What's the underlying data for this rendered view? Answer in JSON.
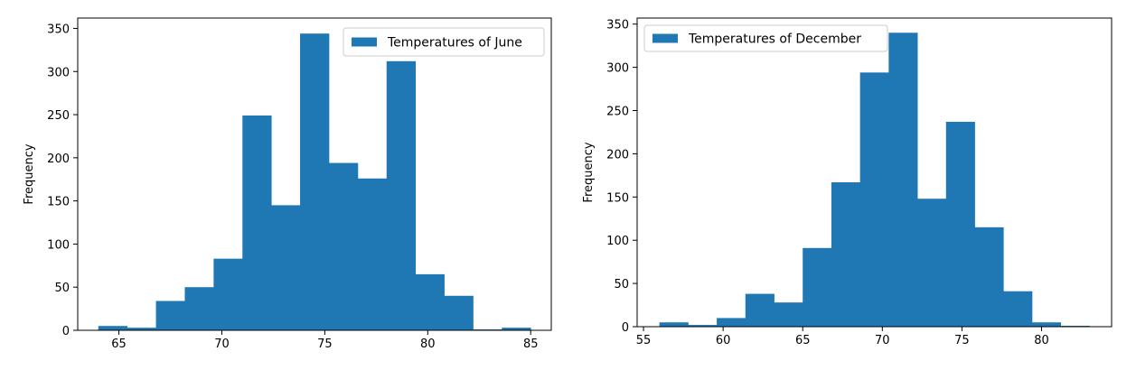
{
  "chart_data": [
    {
      "type": "bar",
      "title": "",
      "xlabel": "",
      "ylabel": "Frequency",
      "bin_edges": [
        64.0,
        65.4,
        66.8,
        68.2,
        69.6,
        71.0,
        72.4,
        73.8,
        75.2,
        76.6,
        78.0,
        79.4,
        80.8,
        82.2,
        83.6,
        85.0
      ],
      "values": [
        5,
        3,
        34,
        50,
        83,
        249,
        145,
        344,
        194,
        176,
        312,
        65,
        40,
        1,
        3
      ],
      "series": [
        {
          "name": "Temperatures of June",
          "color": "#1f77b4"
        }
      ],
      "xlim": [
        63.0,
        86.0
      ],
      "ylim": [
        0,
        362
      ],
      "xticks": [
        65,
        70,
        75,
        80,
        85
      ],
      "yticks": [
        0,
        50,
        100,
        150,
        200,
        250,
        300,
        350
      ],
      "grid": false,
      "legend": "top-right"
    },
    {
      "type": "bar",
      "title": "",
      "xlabel": "",
      "ylabel": "Frequency",
      "bin_edges": [
        56.0,
        57.8,
        59.6,
        61.4,
        63.2,
        65.0,
        66.8,
        68.6,
        70.4,
        72.2,
        74.0,
        75.8,
        77.6,
        79.4,
        81.2,
        83.0
      ],
      "values": [
        5,
        2,
        10,
        38,
        28,
        91,
        167,
        294,
        340,
        148,
        237,
        115,
        41,
        5,
        1
      ],
      "series": [
        {
          "name": "Temperatures of December",
          "color": "#1f77b4"
        }
      ],
      "xlim": [
        54.6,
        84.4
      ],
      "ylim": [
        0,
        357
      ],
      "xticks": [
        55,
        60,
        65,
        70,
        75,
        80
      ],
      "yticks": [
        0,
        50,
        100,
        150,
        200,
        250,
        300,
        350
      ],
      "grid": false,
      "legend": "top-left"
    }
  ]
}
